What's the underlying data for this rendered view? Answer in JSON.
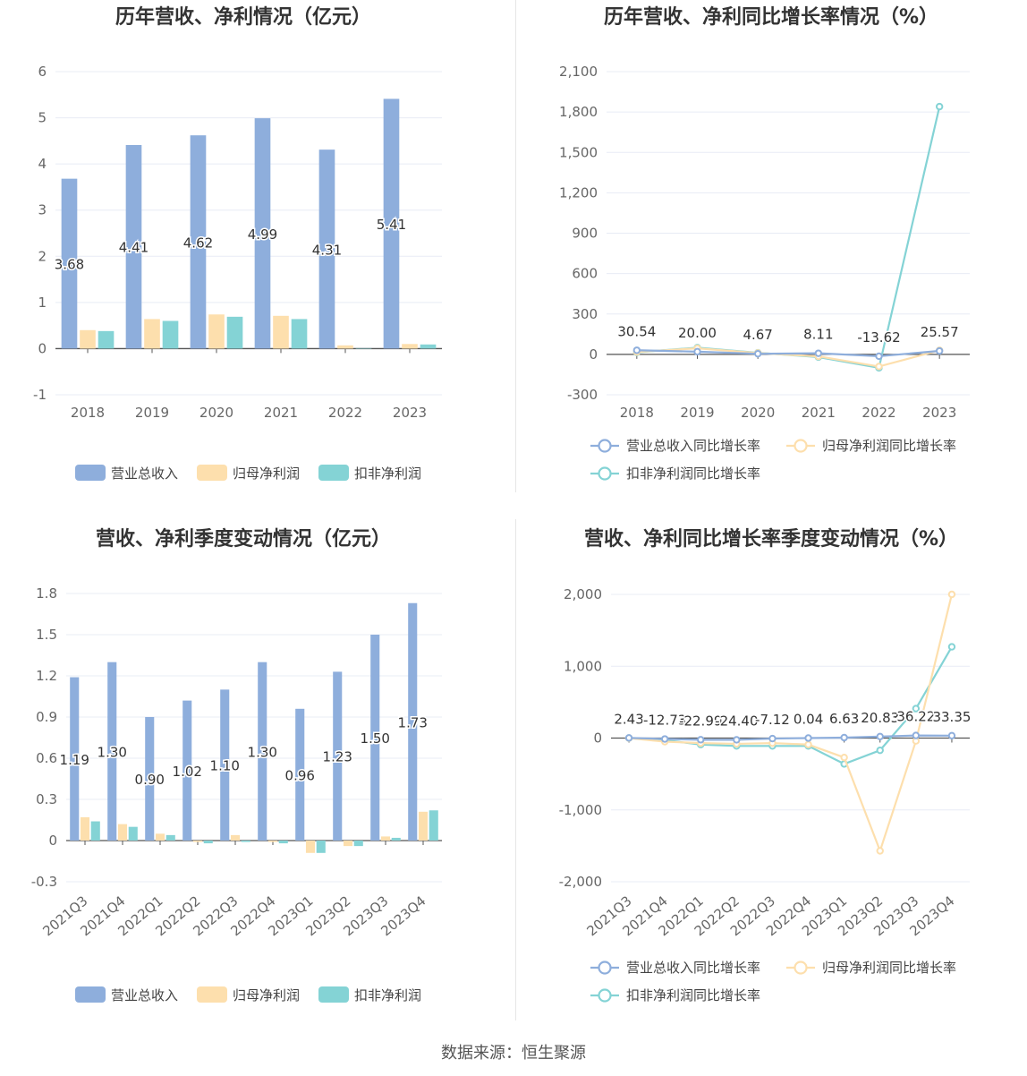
{
  "source_text": "数据来源：恒生聚源",
  "colors": {
    "revenue": "#8eaedc",
    "parent_profit": "#fddfad",
    "deducted_profit": "#84d3d5",
    "axis": "#555555",
    "grid": "#e8ecf5",
    "label": "#333333",
    "tick": "#666666"
  },
  "chart_data": [
    {
      "type": "bar",
      "title": "历年营收、净利情况（亿元）",
      "categories": [
        "2018",
        "2019",
        "2020",
        "2021",
        "2022",
        "2023"
      ],
      "ylim": [
        -1,
        6
      ],
      "yticks": [
        -1,
        0,
        1,
        2,
        3,
        4,
        5,
        6
      ],
      "ytick_labels": [
        "-1",
        "0",
        "1",
        "2",
        "3",
        "4",
        "5",
        "6"
      ],
      "series": [
        {
          "name": "营业总收入",
          "values": [
            3.68,
            4.41,
            4.62,
            4.99,
            4.31,
            5.41
          ],
          "labels": [
            "3.68",
            "4.41",
            "4.62",
            "4.99",
            "4.31",
            "5.41"
          ]
        },
        {
          "name": "归母净利润",
          "values": [
            0.4,
            0.64,
            0.74,
            0.71,
            0.07,
            0.1
          ]
        },
        {
          "name": "扣非净利润",
          "values": [
            0.38,
            0.6,
            0.69,
            0.64,
            0.01,
            0.09
          ]
        }
      ],
      "legend": "bottom"
    },
    {
      "type": "line",
      "title": "历年营收、净利同比增长率情况（%）",
      "categories": [
        "2018",
        "2019",
        "2020",
        "2021",
        "2022",
        "2023"
      ],
      "ylim": [
        -300,
        2100
      ],
      "yticks": [
        -300,
        0,
        300,
        600,
        900,
        1200,
        1500,
        1800,
        2100
      ],
      "ytick_labels": [
        "-300",
        "0",
        "300",
        "600",
        "900",
        "1,200",
        "1,500",
        "1,800",
        "2,100"
      ],
      "series": [
        {
          "name": "营业总收入同比增长率",
          "values": [
            30.54,
            20.0,
            4.67,
            8.11,
            -13.62,
            25.57
          ],
          "labels": [
            "30.54",
            "20.00",
            "4.67",
            "8.11",
            "-13.62",
            "25.57"
          ]
        },
        {
          "name": "归母净利润同比增长率",
          "values": [
            18,
            45,
            10,
            -15,
            -90,
            30
          ]
        },
        {
          "name": "扣非净利润同比增长率",
          "values": [
            15,
            50,
            12,
            -20,
            -100,
            1840
          ]
        }
      ],
      "legend": "bottom"
    },
    {
      "type": "bar",
      "title": "营收、净利季度变动情况（亿元）",
      "categories": [
        "2021Q3",
        "2021Q4",
        "2022Q1",
        "2022Q2",
        "2022Q3",
        "2022Q4",
        "2023Q1",
        "2023Q2",
        "2023Q3",
        "2023Q4"
      ],
      "ylim": [
        -0.3,
        1.8
      ],
      "yticks": [
        -0.3,
        0,
        0.3,
        0.6,
        0.9,
        1.2,
        1.5,
        1.8
      ],
      "ytick_labels": [
        "-0.3",
        "0",
        "0.3",
        "0.6",
        "0.9",
        "1.2",
        "1.5",
        "1.8"
      ],
      "series": [
        {
          "name": "营业总收入",
          "values": [
            1.19,
            1.3,
            0.9,
            1.02,
            1.1,
            1.3,
            0.96,
            1.23,
            1.5,
            1.73
          ],
          "labels": [
            "1.19",
            "1.30",
            "0.90",
            "1.02",
            "1.10",
            "1.30",
            "0.96",
            "1.23",
            "1.50",
            "1.73"
          ]
        },
        {
          "name": "归母净利润",
          "values": [
            0.17,
            0.12,
            0.05,
            -0.01,
            0.04,
            -0.01,
            -0.09,
            -0.04,
            0.03,
            0.21
          ]
        },
        {
          "name": "扣非净利润",
          "values": [
            0.14,
            0.1,
            0.04,
            -0.02,
            -0.01,
            -0.02,
            -0.09,
            -0.04,
            0.02,
            0.22
          ]
        }
      ],
      "legend": "bottom"
    },
    {
      "type": "line",
      "title": "营收、净利同比增长率季度变动情况（%）",
      "categories": [
        "2021Q3",
        "2021Q4",
        "2022Q1",
        "2022Q2",
        "2022Q3",
        "2022Q4",
        "2023Q1",
        "2023Q2",
        "2023Q3",
        "2023Q4"
      ],
      "ylim": [
        -2000,
        2000
      ],
      "yticks": [
        -2000,
        -1000,
        0,
        1000,
        2000
      ],
      "ytick_labels": [
        "-2,000",
        "-1,000",
        "0",
        "1,000",
        "2,000"
      ],
      "series": [
        {
          "name": "营业总收入同比增长率",
          "values": [
            2.43,
            -12.73,
            -22.99,
            -24.4,
            -7.12,
            0.04,
            6.63,
            20.83,
            36.22,
            33.35
          ],
          "labels": [
            "2.43",
            "-12.73",
            "-22.99",
            "-24.40",
            "-7.12",
            "0.04",
            "6.63",
            "20.83",
            "36.22",
            "33.35"
          ]
        },
        {
          "name": "归母净利润同比增长率",
          "values": [
            0,
            -50,
            -70,
            -80,
            -70,
            -90,
            -270,
            -1570,
            -40,
            2000
          ]
        },
        {
          "name": "扣非净利润同比增长率",
          "values": [
            0,
            -30,
            -90,
            -110,
            -110,
            -110,
            -360,
            -170,
            410,
            1270
          ]
        }
      ],
      "legend": "bottom"
    }
  ]
}
